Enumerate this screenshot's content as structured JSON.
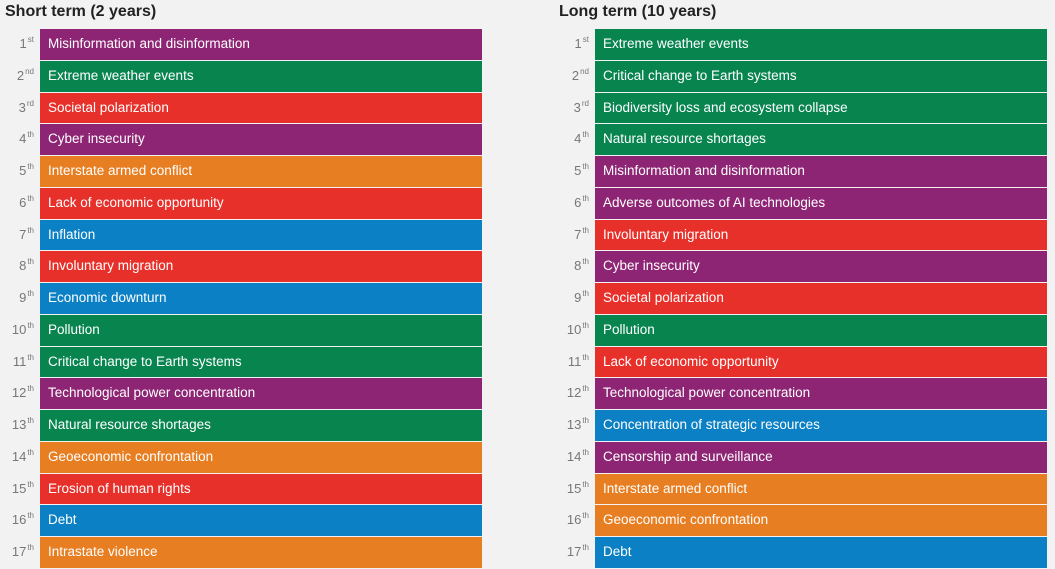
{
  "colors": {
    "societal": "#8e2574",
    "environmental": "#08854f",
    "economic": "#e87e22",
    "technological": "#e8302b",
    "geopolitical": "#0b80c4"
  },
  "chart_data": [
    {
      "type": "table",
      "title": "Short term (2 years)",
      "rows": [
        {
          "rank": "1",
          "suffix": "st",
          "label": "Misinformation and disinformation",
          "category": "societal"
        },
        {
          "rank": "2",
          "suffix": "nd",
          "label": "Extreme weather events",
          "category": "environmental"
        },
        {
          "rank": "3",
          "suffix": "rd",
          "label": "Societal polarization",
          "category": "technological"
        },
        {
          "rank": "4",
          "suffix": "th",
          "label": "Cyber insecurity",
          "category": "societal"
        },
        {
          "rank": "5",
          "suffix": "th",
          "label": "Interstate armed conflict",
          "category": "economic"
        },
        {
          "rank": "6",
          "suffix": "th",
          "label": "Lack of economic opportunity",
          "category": "technological"
        },
        {
          "rank": "7",
          "suffix": "th",
          "label": "Inflation",
          "category": "geopolitical"
        },
        {
          "rank": "8",
          "suffix": "th",
          "label": "Involuntary migration",
          "category": "technological"
        },
        {
          "rank": "9",
          "suffix": "th",
          "label": "Economic downturn",
          "category": "geopolitical"
        },
        {
          "rank": "10",
          "suffix": "th",
          "label": "Pollution",
          "category": "environmental"
        },
        {
          "rank": "11",
          "suffix": "th",
          "label": "Critical change to Earth systems",
          "category": "environmental"
        },
        {
          "rank": "12",
          "suffix": "th",
          "label": "Technological power concentration",
          "category": "societal"
        },
        {
          "rank": "13",
          "suffix": "th",
          "label": "Natural resource shortages",
          "category": "environmental"
        },
        {
          "rank": "14",
          "suffix": "th",
          "label": "Geoeconomic confrontation",
          "category": "economic"
        },
        {
          "rank": "15",
          "suffix": "th",
          "label": "Erosion of human rights",
          "category": "technological"
        },
        {
          "rank": "16",
          "suffix": "th",
          "label": "Debt",
          "category": "geopolitical"
        },
        {
          "rank": "17",
          "suffix": "th",
          "label": "Intrastate violence",
          "category": "economic"
        }
      ]
    },
    {
      "type": "table",
      "title": "Long term (10 years)",
      "rows": [
        {
          "rank": "1",
          "suffix": "st",
          "label": "Extreme weather events",
          "category": "environmental"
        },
        {
          "rank": "2",
          "suffix": "nd",
          "label": "Critical change to Earth systems",
          "category": "environmental"
        },
        {
          "rank": "3",
          "suffix": "rd",
          "label": "Biodiversity loss and ecosystem collapse",
          "category": "environmental"
        },
        {
          "rank": "4",
          "suffix": "th",
          "label": "Natural resource shortages",
          "category": "environmental"
        },
        {
          "rank": "5",
          "suffix": "th",
          "label": "Misinformation and disinformation",
          "category": "societal"
        },
        {
          "rank": "6",
          "suffix": "th",
          "label": "Adverse outcomes of AI technologies",
          "category": "societal"
        },
        {
          "rank": "7",
          "suffix": "th",
          "label": "Involuntary migration",
          "category": "technological"
        },
        {
          "rank": "8",
          "suffix": "th",
          "label": "Cyber insecurity",
          "category": "societal"
        },
        {
          "rank": "9",
          "suffix": "th",
          "label": "Societal polarization",
          "category": "technological"
        },
        {
          "rank": "10",
          "suffix": "th",
          "label": "Pollution",
          "category": "environmental"
        },
        {
          "rank": "11",
          "suffix": "th",
          "label": "Lack of economic opportunity",
          "category": "technological"
        },
        {
          "rank": "12",
          "suffix": "th",
          "label": "Technological power concentration",
          "category": "societal"
        },
        {
          "rank": "13",
          "suffix": "th",
          "label": "Concentration of strategic resources",
          "category": "geopolitical"
        },
        {
          "rank": "14",
          "suffix": "th",
          "label": "Censorship and surveillance",
          "category": "societal"
        },
        {
          "rank": "15",
          "suffix": "th",
          "label": "Interstate armed conflict",
          "category": "economic"
        },
        {
          "rank": "16",
          "suffix": "th",
          "label": "Geoeconomic confrontation",
          "category": "economic"
        },
        {
          "rank": "17",
          "suffix": "th",
          "label": "Debt",
          "category": "geopolitical"
        }
      ]
    }
  ]
}
